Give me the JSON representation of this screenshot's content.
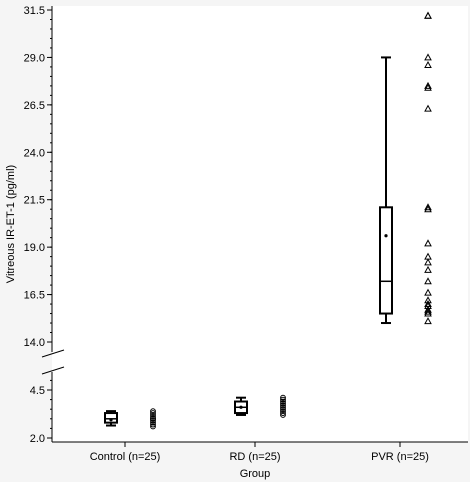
{
  "chart_data": {
    "type": "box",
    "xlabel": "Group",
    "ylabel": "Vitreous IR-ET-1 (pg/ml)",
    "categories": [
      "Control (n=25)",
      "RD (n=25)",
      "PVR (n=25)"
    ],
    "y_axis": {
      "broken": true,
      "lower_segment_ticks": [
        "2.0",
        "4.5"
      ],
      "upper_segment_ticks": [
        "14.0",
        "16.5",
        "19.0",
        "21.5",
        "24.0",
        "26.5",
        "29.0",
        "31.5"
      ],
      "lower_segment_range": [
        1.7,
        6.0
      ],
      "upper_segment_range": [
        13.6,
        31.5
      ]
    },
    "grid": false,
    "legend": "none",
    "boxes": [
      {
        "category": "Control (n=25)",
        "whisker_low": 2.65,
        "q1": 2.8,
        "median": 3.0,
        "q3": 3.3,
        "whisker_high": 3.4,
        "mean": 2.95,
        "points": [
          2.6,
          2.7,
          2.8,
          2.9,
          3.0,
          3.0,
          3.1,
          3.2,
          3.3,
          3.4
        ]
      },
      {
        "category": "RD (n=25)",
        "whisker_low": 3.2,
        "q1": 3.3,
        "median": 3.6,
        "q3": 3.9,
        "whisker_high": 4.1,
        "mean": 3.6,
        "points": [
          3.2,
          3.3,
          3.4,
          3.5,
          3.6,
          3.7,
          3.8,
          3.9,
          4.0,
          4.1
        ]
      },
      {
        "category": "PVR (n=25)",
        "whisker_low": 15.0,
        "q1": 15.5,
        "median": 17.2,
        "q3": 21.1,
        "whisker_high": 29.0,
        "mean": 19.6,
        "points": [
          31.2,
          31.2,
          29.0,
          28.6,
          27.5,
          27.4,
          26.3,
          21.1,
          21.0,
          19.2,
          18.5,
          18.2,
          17.8,
          17.2,
          16.6,
          16.2,
          16.0,
          15.9,
          15.7,
          15.6,
          15.5,
          15.1
        ]
      }
    ]
  }
}
